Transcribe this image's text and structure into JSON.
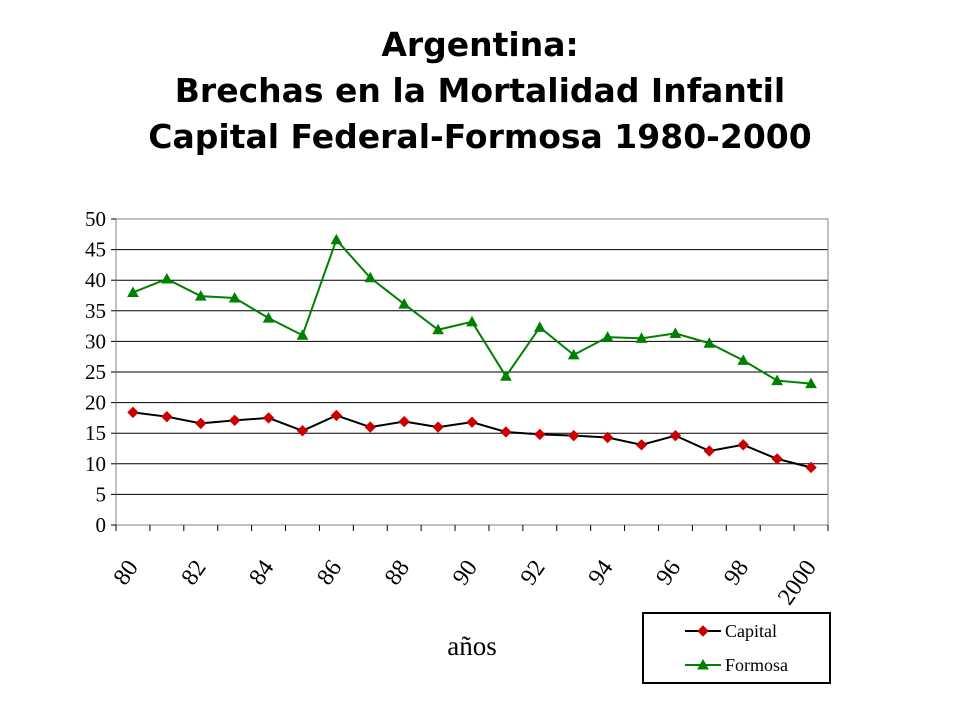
{
  "title": {
    "line1": "Argentina:",
    "line2": "Brechas en la Mortalidad Infantil",
    "line3": "Capital Federal-Formosa 1980-2000"
  },
  "chart_data": {
    "type": "line",
    "title": "Argentina: Brechas en la Mortalidad Infantil Capital Federal-Formosa 1980-2000",
    "xlabel": "años",
    "ylabel": "",
    "x": [
      1980,
      1981,
      1982,
      1983,
      1984,
      1985,
      1986,
      1987,
      1988,
      1989,
      1990,
      1991,
      1992,
      1993,
      1994,
      1995,
      1996,
      1997,
      1998,
      1999,
      2000
    ],
    "x_tick_labels": [
      "80",
      "82",
      "84",
      "86",
      "88",
      "90",
      "92",
      "94",
      "96",
      "98",
      "2000"
    ],
    "y_tick_labels": [
      "0",
      "5",
      "10",
      "15",
      "20",
      "25",
      "30",
      "35",
      "40",
      "45",
      "50"
    ],
    "ylim": [
      0,
      50
    ],
    "grid": "horizontal",
    "legend_position": "bottom-right",
    "series": [
      {
        "name": "Capital",
        "color": "#cc0000",
        "line_color": "#000000",
        "marker": "diamond",
        "values": [
          18.4,
          17.7,
          16.6,
          17.1,
          17.5,
          15.4,
          17.9,
          16.0,
          16.9,
          16.0,
          16.8,
          15.2,
          14.8,
          14.6,
          14.3,
          13.1,
          14.6,
          12.1,
          13.1,
          10.8,
          9.4
        ]
      },
      {
        "name": "Formosa",
        "color": "#008000",
        "line_color": "#008000",
        "marker": "triangle",
        "values": [
          38.0,
          40.2,
          37.4,
          37.1,
          33.8,
          31.0,
          46.6,
          40.4,
          36.1,
          31.9,
          33.2,
          24.3,
          32.3,
          27.8,
          30.7,
          30.5,
          31.3,
          29.7,
          26.9,
          23.6,
          23.1
        ]
      }
    ]
  }
}
